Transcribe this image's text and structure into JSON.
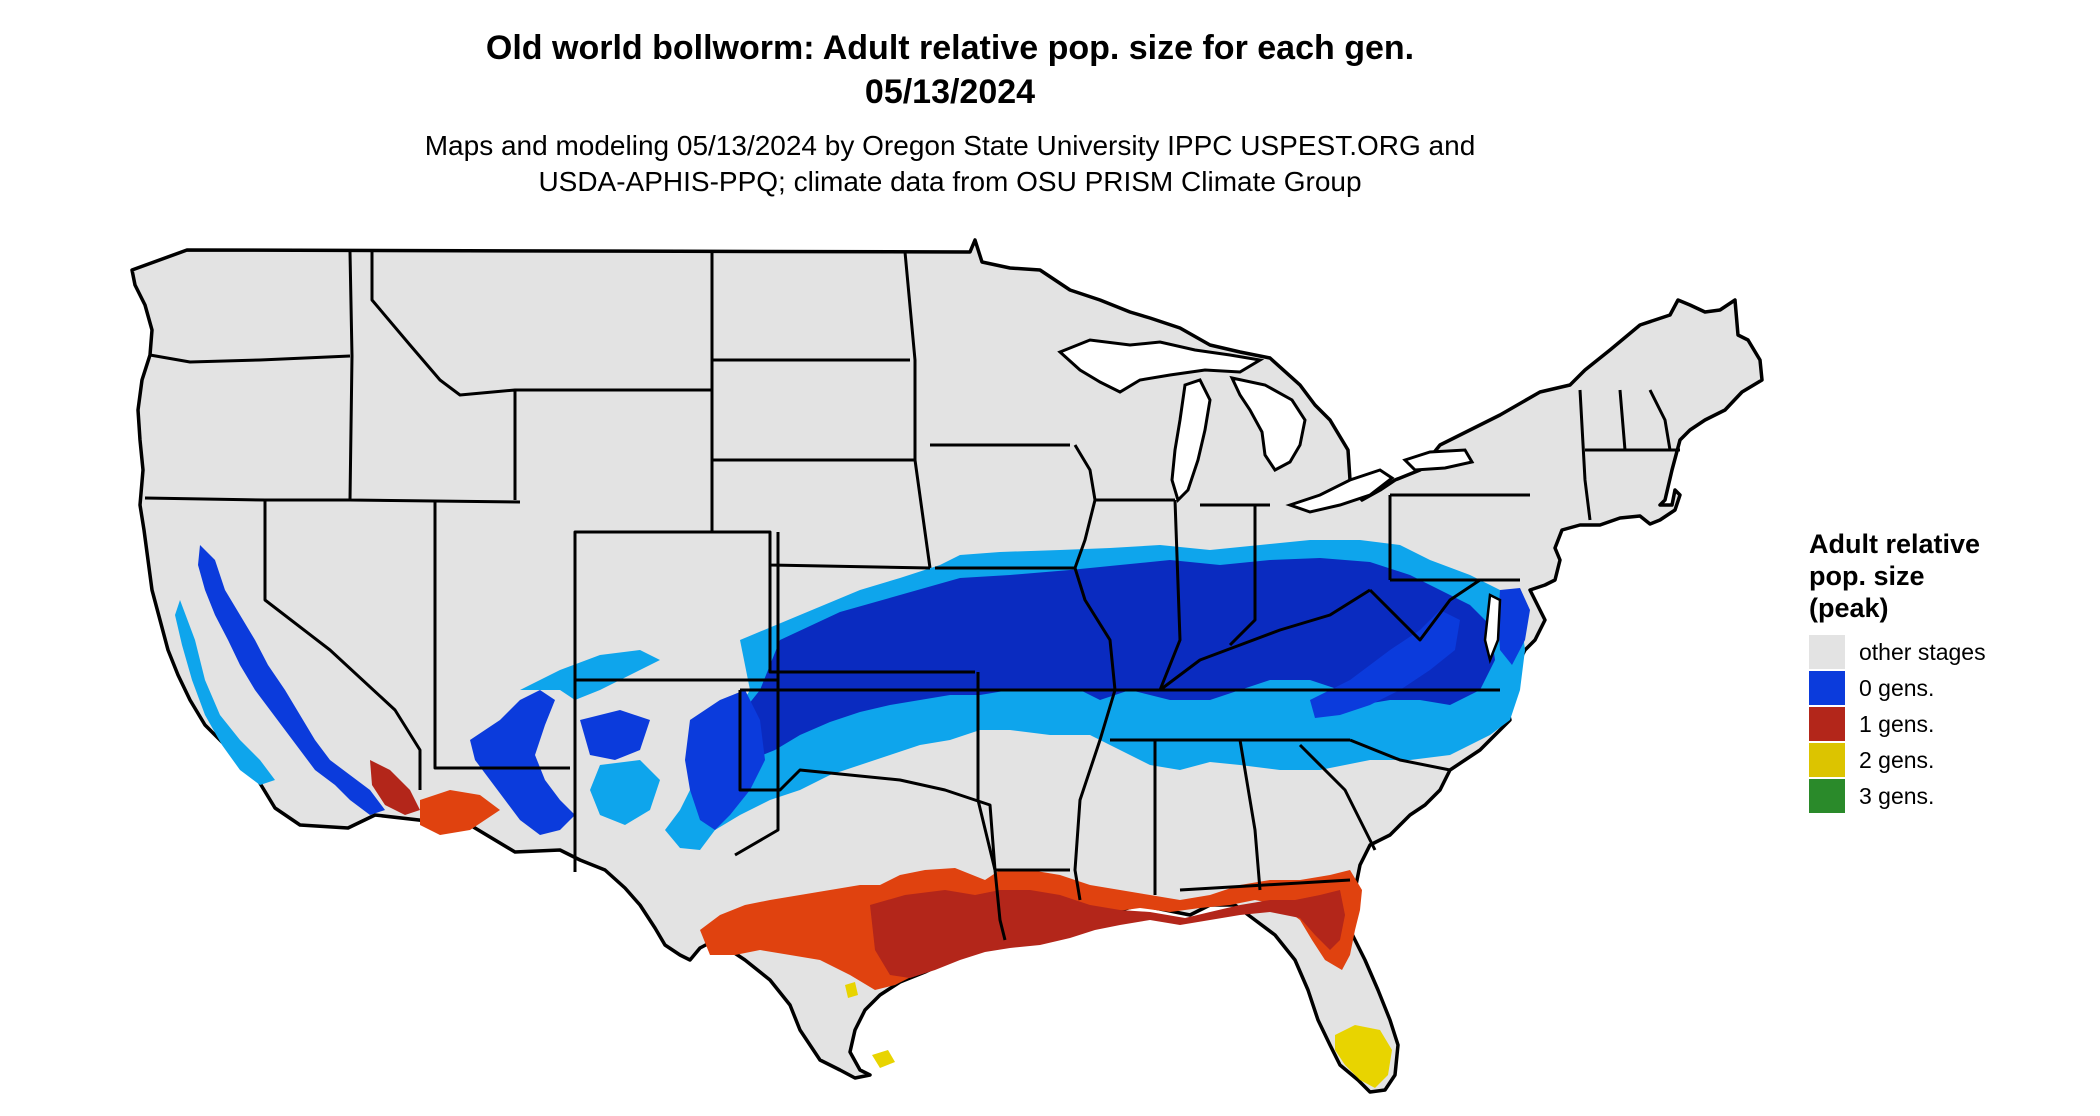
{
  "title_line1": "Old world bollworm: Adult relative pop. size for each gen.",
  "title_line2": "05/13/2024",
  "subtitle_line1": "Maps and modeling 05/13/2024 by Oregon State University IPPC USPEST.ORG and",
  "subtitle_line2": "USDA-APHIS-PPQ; climate data from OSU PRISM Climate Group",
  "legend": {
    "title_lines": [
      "Adult relative",
      "pop. size",
      "(peak)"
    ],
    "items": [
      {
        "label": "other stages",
        "color": "#e3e3e3"
      },
      {
        "label": "0 gens.",
        "color": "#0b3bdc"
      },
      {
        "label": "1 gens.",
        "color": "#b3261a"
      },
      {
        "label": "2 gens.",
        "color": "#dcc400"
      },
      {
        "label": "3 gens.",
        "color": "#2a8a2a"
      }
    ]
  },
  "colors": {
    "land": "#e3e3e3",
    "light_blue": "#0ea5ec",
    "blue": "#0b3bdc",
    "dark_blue": "#0a2bc0",
    "red": "#b3261a",
    "orange_red": "#e0420f",
    "yellow": "#e8d400",
    "border": "#000000"
  }
}
